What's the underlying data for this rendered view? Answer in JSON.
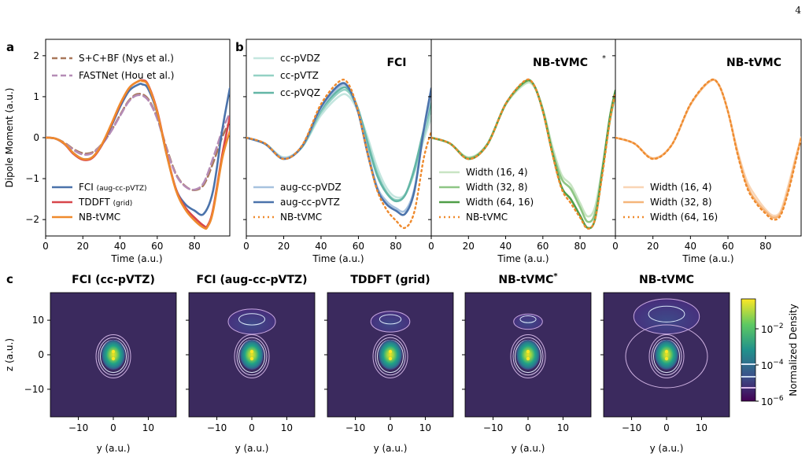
{
  "page_number": "4",
  "colors": {
    "fci_light": "#c4e6df",
    "fci_mid": "#94d1c4",
    "fci_dark": "#63b6a6",
    "aug_light": "#a7c2df",
    "aug_dark": "#4b73ab",
    "tddft": "#d8464a",
    "nbtvmc": "#ef8a2d",
    "nys": "#a9785a",
    "hou": "#b58cb6",
    "nbstar_light": "#c8e4c3",
    "nbstar_mid": "#8ec685",
    "nbstar_dark": "#4f9e47",
    "nb_light": "#f9d5b5",
    "nb_mid": "#f5b57a",
    "density_bg": "#3b2a5e"
  },
  "panels": {
    "a": {
      "label": "a"
    },
    "b": {
      "label": "b",
      "sub_titles": [
        "FCI",
        "NB-tVMC",
        "NB-tVMC"
      ]
    },
    "c": {
      "label": "c",
      "titles": [
        "FCI (cc-pVTZ)",
        "FCI (aug-cc-pVTZ)",
        "TDDFT (grid)",
        "NB-tVMC",
        "NB-tVMC"
      ],
      "xlabel": "y (a.u.)",
      "ylabel": "z (a.u.)",
      "xticks": [
        "−10",
        "0",
        "10"
      ],
      "yticks": [
        "10",
        "0",
        "−10"
      ]
    },
    "colorbar": {
      "label": "Normalized Density",
      "ticks": [
        "10",
        "10",
        "10"
      ],
      "exponents": [
        "−2",
        "−4",
        "−6"
      ]
    }
  },
  "star": "*",
  "chart_data": [
    {
      "type": "line",
      "panel": "a",
      "xlabel": "Time (a.u.)",
      "ylabel": "Dipole Moment (a.u.)",
      "xlim": [
        0,
        99
      ],
      "ylim": [
        -2.4,
        2.4
      ],
      "xticks": [
        0,
        20,
        40,
        60,
        80
      ],
      "yticks": [
        2,
        1,
        0,
        -1,
        -2
      ],
      "xtick_labels": [
        "0",
        "20",
        "40",
        "60",
        "80"
      ],
      "ytick_labels": [
        "2",
        "1",
        "0",
        "−1",
        "−2"
      ],
      "legend_top": [
        "S+C+BF (Nys et al.)",
        "FASTNet (Hou et al.)"
      ],
      "legend_bottom": [
        [
          "FCI ",
          "(aug-cc-pVTZ)"
        ],
        [
          "TDDFT ",
          "(grid)"
        ],
        [
          "NB-tVMC",
          ""
        ]
      ],
      "series": [
        {
          "name": "S+C+BF (Nys et al.)",
          "dash": true,
          "key": "nys",
          "x": [
            0,
            5,
            10,
            15,
            20,
            25,
            30,
            35,
            40,
            45,
            50,
            55,
            60,
            65,
            70,
            75,
            80,
            85,
            90,
            95,
            99
          ],
          "y": [
            0,
            -0.02,
            -0.12,
            -0.28,
            -0.38,
            -0.36,
            -0.17,
            0.15,
            0.55,
            0.92,
            1.07,
            0.95,
            0.48,
            -0.25,
            -0.88,
            -1.18,
            -1.28,
            -1.15,
            -0.62,
            0.02,
            0.4
          ]
        },
        {
          "name": "FASTNet (Hou et al.)",
          "dash": true,
          "key": "hou",
          "x": [
            0,
            5,
            10,
            15,
            20,
            25,
            30,
            35,
            40,
            45,
            50,
            55,
            60,
            65,
            70,
            75,
            80,
            85,
            90,
            95,
            99
          ],
          "y": [
            0,
            -0.02,
            -0.13,
            -0.3,
            -0.41,
            -0.38,
            -0.18,
            0.14,
            0.53,
            0.9,
            1.04,
            0.92,
            0.46,
            -0.28,
            -0.9,
            -1.19,
            -1.27,
            -1.1,
            -0.5,
            0.18,
            0.6
          ]
        },
        {
          "name": "FCI (aug-cc-pVTZ)",
          "dash": false,
          "key": "aug_dark",
          "x": [
            0,
            5,
            10,
            15,
            20,
            25,
            30,
            35,
            40,
            45,
            50,
            52,
            55,
            60,
            65,
            70,
            75,
            80,
            85,
            90,
            95,
            99
          ],
          "y": [
            0,
            -0.02,
            -0.15,
            -0.38,
            -0.52,
            -0.48,
            -0.2,
            0.25,
            0.75,
            1.15,
            1.3,
            1.3,
            1.2,
            0.6,
            -0.4,
            -1.25,
            -1.62,
            -1.78,
            -1.86,
            -1.3,
            0.2,
            1.2
          ]
        },
        {
          "name": "TDDFT (grid)",
          "dash": false,
          "key": "tddft",
          "x": [
            0,
            5,
            10,
            15,
            20,
            25,
            30,
            35,
            40,
            45,
            50,
            52,
            55,
            60,
            65,
            70,
            75,
            80,
            85,
            87,
            90,
            95,
            99
          ],
          "y": [
            0,
            -0.02,
            -0.15,
            -0.4,
            -0.54,
            -0.5,
            -0.2,
            0.28,
            0.8,
            1.22,
            1.38,
            1.4,
            1.3,
            0.65,
            -0.38,
            -1.25,
            -1.7,
            -1.95,
            -2.15,
            -2.15,
            -1.75,
            -0.4,
            0.5
          ]
        },
        {
          "name": "NB-tVMC",
          "dash": false,
          "key": "nbtvmc",
          "x": [
            0,
            5,
            10,
            15,
            20,
            25,
            30,
            35,
            40,
            45,
            50,
            52,
            55,
            60,
            65,
            70,
            75,
            80,
            85,
            87,
            90,
            95,
            99
          ],
          "y": [
            0,
            -0.02,
            -0.14,
            -0.38,
            -0.52,
            -0.48,
            -0.18,
            0.3,
            0.82,
            1.22,
            1.38,
            1.38,
            1.28,
            0.62,
            -0.4,
            -1.28,
            -1.75,
            -2.02,
            -2.2,
            -2.18,
            -1.8,
            -0.5,
            0.15
          ]
        }
      ]
    },
    {
      "type": "line",
      "panel": "b1",
      "title": "FCI",
      "xlabel": "Time (a.u.)",
      "xlim": [
        0,
        99
      ],
      "ylim": [
        -2.4,
        2.4
      ],
      "xticks": [
        0,
        20,
        40,
        60,
        80
      ],
      "xtick_labels": [
        "0",
        "20",
        "40",
        "60",
        "80"
      ],
      "legend_top": [
        "cc-pVDZ",
        "cc-pVTZ",
        "cc-pVQZ"
      ],
      "legend_bottom": [
        "aug-cc-pVDZ",
        "aug-cc-pVTZ",
        "NB-tVMC"
      ],
      "series": [
        {
          "name": "cc-pVDZ",
          "key": "fci_light",
          "x": [
            0,
            10,
            20,
            30,
            40,
            50,
            55,
            60,
            65,
            70,
            75,
            80,
            85,
            90,
            95,
            99
          ],
          "y": [
            0,
            -0.14,
            -0.48,
            -0.22,
            0.55,
            1.02,
            1.0,
            0.62,
            0.0,
            -0.72,
            -1.22,
            -1.45,
            -1.38,
            -0.85,
            -0.05,
            0.5
          ]
        },
        {
          "name": "cc-pVTZ",
          "key": "fci_mid",
          "x": [
            0,
            10,
            20,
            30,
            40,
            50,
            55,
            60,
            65,
            70,
            75,
            80,
            85,
            90,
            95,
            99
          ],
          "y": [
            0,
            -0.15,
            -0.5,
            -0.22,
            0.62,
            1.12,
            1.1,
            0.65,
            -0.1,
            -0.85,
            -1.32,
            -1.52,
            -1.4,
            -0.8,
            0.05,
            0.7
          ]
        },
        {
          "name": "cc-pVQZ",
          "key": "fci_dark",
          "x": [
            0,
            10,
            20,
            30,
            40,
            50,
            55,
            60,
            65,
            70,
            75,
            80,
            85,
            90,
            95,
            99
          ],
          "y": [
            0,
            -0.15,
            -0.5,
            -0.21,
            0.68,
            1.18,
            1.16,
            0.68,
            -0.15,
            -0.92,
            -1.35,
            -1.55,
            -1.4,
            -0.75,
            0.2,
            0.85
          ]
        },
        {
          "name": "aug-cc-pVDZ",
          "key": "aug_light",
          "x": [
            0,
            10,
            20,
            30,
            40,
            50,
            55,
            60,
            65,
            70,
            75,
            80,
            85,
            90,
            95,
            99
          ],
          "y": [
            0,
            -0.15,
            -0.5,
            -0.2,
            0.72,
            1.25,
            1.2,
            0.62,
            -0.35,
            -1.2,
            -1.55,
            -1.72,
            -1.78,
            -1.25,
            0.15,
            1.05
          ]
        },
        {
          "name": "aug-cc-pVTZ",
          "key": "aug_dark",
          "x": [
            0,
            10,
            20,
            30,
            40,
            50,
            55,
            60,
            65,
            70,
            75,
            80,
            85,
            90,
            95,
            99
          ],
          "y": [
            0,
            -0.15,
            -0.52,
            -0.2,
            0.75,
            1.3,
            1.2,
            0.6,
            -0.4,
            -1.25,
            -1.62,
            -1.78,
            -1.86,
            -1.3,
            0.2,
            1.2
          ]
        },
        {
          "name": "NB-tVMC",
          "key": "nbtvmc",
          "dotted": true,
          "x": [
            0,
            10,
            20,
            30,
            40,
            50,
            55,
            60,
            65,
            70,
            75,
            80,
            85,
            90,
            95,
            99
          ],
          "y": [
            0,
            -0.14,
            -0.52,
            -0.18,
            0.82,
            1.38,
            1.28,
            0.62,
            -0.4,
            -1.28,
            -1.75,
            -2.02,
            -2.2,
            -1.8,
            -0.5,
            0.15
          ]
        }
      ]
    },
    {
      "type": "line",
      "panel": "b2",
      "title": "NB-tVMC",
      "xlabel": "Time (a.u.)",
      "xlim": [
        0,
        99
      ],
      "ylim": [
        -2.4,
        2.4
      ],
      "xticks": [
        0,
        20,
        40,
        60,
        80
      ],
      "xtick_labels": [
        "0",
        "20",
        "40",
        "60",
        "80"
      ],
      "legend_bottom": [
        "Width (16, 4)",
        "Width (32, 8)",
        "Width (64, 16)",
        "NB-tVMC"
      ],
      "series": [
        {
          "name": "Width (16, 4)",
          "key": "nbstar_light",
          "x": [
            0,
            10,
            20,
            30,
            40,
            50,
            55,
            60,
            65,
            70,
            75,
            80,
            84,
            88,
            92,
            96,
            99
          ],
          "y": [
            0,
            -0.14,
            -0.48,
            -0.16,
            0.8,
            1.3,
            1.26,
            0.7,
            -0.2,
            -0.9,
            -1.15,
            -1.6,
            -1.92,
            -1.7,
            -0.7,
            0.45,
            1.0
          ]
        },
        {
          "name": "Width (32, 8)",
          "key": "nbstar_mid",
          "x": [
            0,
            10,
            20,
            30,
            40,
            50,
            55,
            60,
            65,
            70,
            75,
            80,
            84,
            88,
            92,
            96,
            99
          ],
          "y": [
            0,
            -0.14,
            -0.5,
            -0.17,
            0.82,
            1.34,
            1.3,
            0.68,
            -0.3,
            -1.0,
            -1.25,
            -1.7,
            -2.05,
            -1.85,
            -0.8,
            0.4,
            1.05
          ]
        },
        {
          "name": "Width (64, 16)",
          "key": "nbstar_dark",
          "x": [
            0,
            10,
            20,
            30,
            40,
            50,
            55,
            60,
            65,
            70,
            75,
            80,
            84,
            88,
            92,
            96,
            99
          ],
          "y": [
            0,
            -0.14,
            -0.52,
            -0.18,
            0.82,
            1.36,
            1.3,
            0.65,
            -0.35,
            -1.2,
            -1.5,
            -1.9,
            -2.2,
            -2.0,
            -0.8,
            0.5,
            1.15
          ]
        },
        {
          "name": "NB-tVMC",
          "key": "nbtvmc",
          "dotted": true,
          "x": [
            0,
            10,
            20,
            30,
            40,
            50,
            55,
            60,
            65,
            70,
            75,
            80,
            84,
            88,
            92,
            96,
            99
          ],
          "y": [
            0,
            -0.14,
            -0.52,
            -0.18,
            0.82,
            1.38,
            1.3,
            0.64,
            -0.38,
            -1.24,
            -1.6,
            -1.95,
            -2.22,
            -2.0,
            -0.9,
            0.4,
            1.1
          ]
        }
      ]
    },
    {
      "type": "line",
      "panel": "b3",
      "title": "NB-tVMC",
      "xlabel": "Time (a.u.)",
      "xlim": [
        0,
        99
      ],
      "ylim": [
        -2.4,
        2.4
      ],
      "xticks": [
        0,
        20,
        40,
        60,
        80
      ],
      "xtick_labels": [
        "0",
        "20",
        "40",
        "60",
        "80"
      ],
      "legend_bottom": [
        "Width (16, 4)",
        "Width (32, 8)",
        "Width (64, 16)"
      ],
      "series": [
        {
          "name": "Width (16, 4)",
          "key": "nb_light",
          "x": [
            0,
            10,
            20,
            30,
            40,
            50,
            55,
            60,
            65,
            70,
            75,
            80,
            84,
            88,
            92,
            96,
            99
          ],
          "y": [
            0,
            -0.14,
            -0.5,
            -0.18,
            0.8,
            1.36,
            1.3,
            0.64,
            -0.3,
            -1.05,
            -1.45,
            -1.75,
            -1.9,
            -1.8,
            -1.2,
            -0.5,
            0.0
          ]
        },
        {
          "name": "Width (32, 8)",
          "key": "nb_mid",
          "x": [
            0,
            10,
            20,
            30,
            40,
            50,
            55,
            60,
            65,
            70,
            75,
            80,
            84,
            88,
            92,
            96,
            99
          ],
          "y": [
            0,
            -0.14,
            -0.51,
            -0.18,
            0.81,
            1.37,
            1.3,
            0.64,
            -0.35,
            -1.15,
            -1.55,
            -1.8,
            -1.95,
            -1.85,
            -1.3,
            -0.55,
            0.0
          ]
        },
        {
          "name": "Width (64, 16)",
          "key": "nbtvmc",
          "dotted": true,
          "x": [
            0,
            10,
            20,
            30,
            40,
            50,
            55,
            60,
            65,
            70,
            75,
            80,
            84,
            88,
            92,
            96,
            99
          ],
          "y": [
            0,
            -0.14,
            -0.52,
            -0.18,
            0.82,
            1.38,
            1.3,
            0.64,
            -0.38,
            -1.2,
            -1.6,
            -1.85,
            -2.0,
            -1.9,
            -1.35,
            -0.6,
            0.0
          ]
        }
      ]
    }
  ]
}
